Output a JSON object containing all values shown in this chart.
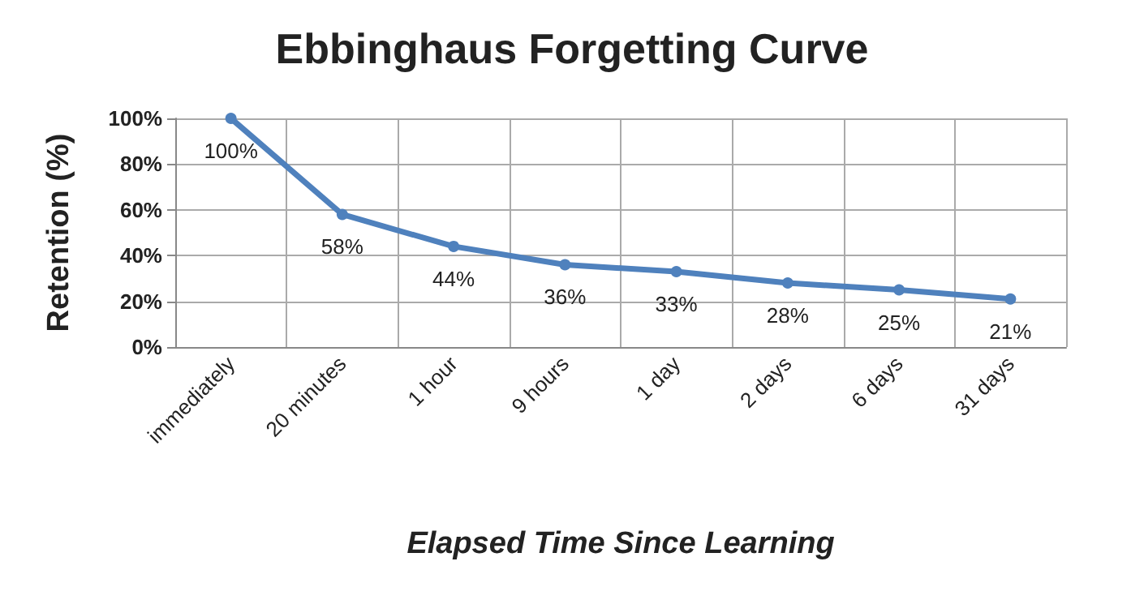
{
  "chart_data": {
    "type": "line",
    "title": "Ebbinghaus Forgetting Curve",
    "xlabel": "Elapsed Time Since Learning",
    "ylabel": "Retention (%)",
    "categories": [
      "immediately",
      "20 minutes",
      "1 hour",
      "9 hours",
      "1 day",
      "2 days",
      "6 days",
      "31 days"
    ],
    "series": [
      {
        "color": "#4f81bd",
        "values": [
          100,
          58,
          44,
          36,
          33,
          28,
          25,
          21
        ],
        "value_labels": [
          "100%",
          "58%",
          "44%",
          "36%",
          "33%",
          "28%",
          "25%",
          "21%"
        ]
      }
    ],
    "ylim": [
      0,
      100
    ],
    "yticks": [
      {
        "value": 0,
        "label": "0%"
      },
      {
        "value": 20,
        "label": "20%"
      },
      {
        "value": 40,
        "label": "40%"
      },
      {
        "value": 60,
        "label": "60%"
      },
      {
        "value": 80,
        "label": "80%"
      },
      {
        "value": 100,
        "label": "100%"
      }
    ],
    "grid": true,
    "marker": "circle",
    "line_style": "solid"
  }
}
